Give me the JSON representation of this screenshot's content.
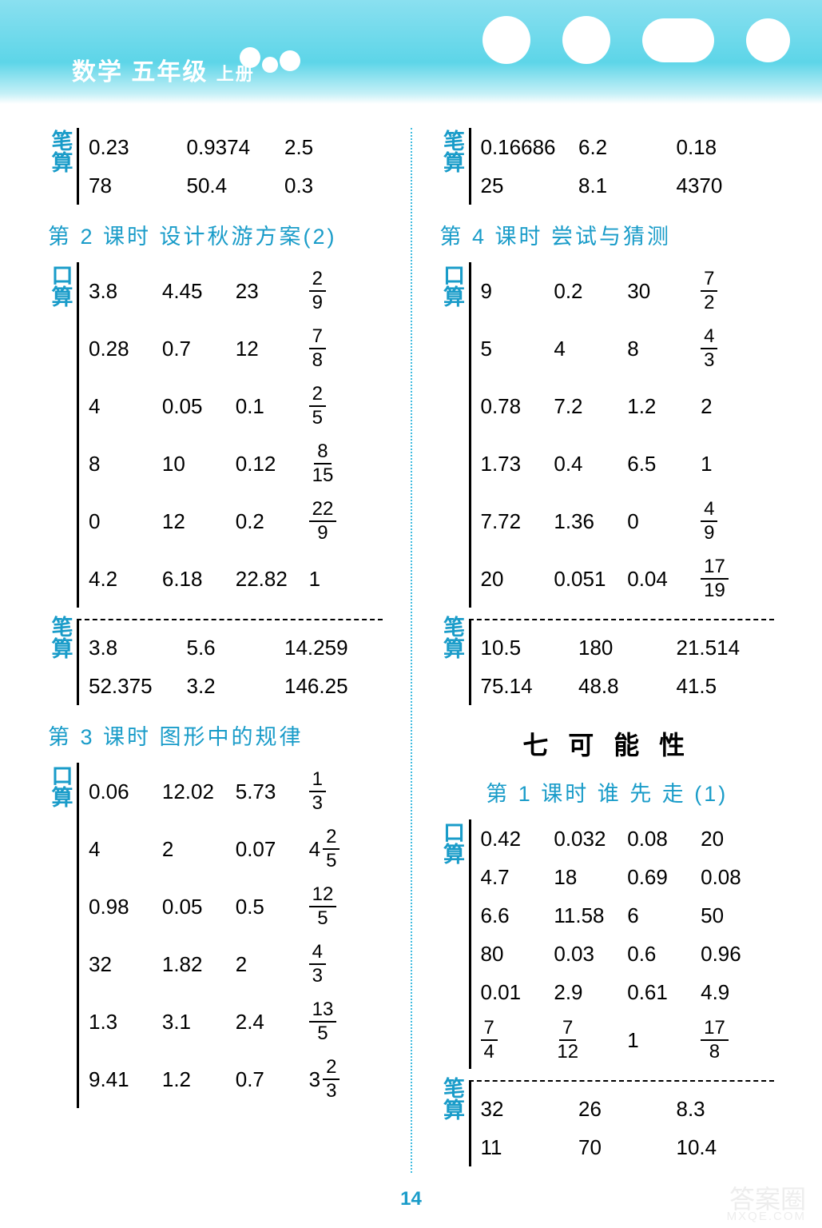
{
  "header": {
    "subject": "数学",
    "grade": "五年级",
    "volume": "上册"
  },
  "colors": {
    "accent": "#1a9cc9",
    "header_bg_top": "#8ae0f0",
    "header_bg_bottom": "#c5f0f7",
    "text": "#000000",
    "divider": "#3fbce0"
  },
  "page_number": "14",
  "watermark": "答案圈",
  "watermark_url": "MXQE.COM",
  "left": {
    "bisuan_top": {
      "rows": [
        [
          "0.23",
          "0.9374",
          "2.5"
        ],
        [
          "78",
          "50.4",
          "0.3"
        ]
      ]
    },
    "section2": {
      "title": "第 2 课时  设计秋游方案(2)",
      "kousuan": {
        "rows": [
          [
            "3.8",
            "4.45",
            "23",
            {
              "n": "2",
              "d": "9"
            }
          ],
          [
            "0.28",
            "0.7",
            "12",
            {
              "n": "7",
              "d": "8"
            }
          ],
          [
            "4",
            "0.05",
            "0.1",
            {
              "n": "2",
              "d": "5"
            }
          ],
          [
            "8",
            "10",
            "0.12",
            {
              "n": "8",
              "d": "15"
            }
          ],
          [
            "0",
            "12",
            "0.2",
            {
              "n": "22",
              "d": "9"
            }
          ],
          [
            "4.2",
            "6.18",
            "22.82",
            "1"
          ]
        ]
      },
      "bisuan": {
        "rows": [
          [
            "3.8",
            "5.6",
            "14.259"
          ],
          [
            "52.375",
            "3.2",
            "146.25"
          ]
        ]
      }
    },
    "section3": {
      "title": "第 3 课时  图形中的规律",
      "kousuan": {
        "rows": [
          [
            "0.06",
            "12.02",
            "5.73",
            {
              "n": "1",
              "d": "3"
            }
          ],
          [
            "4",
            "2",
            "0.07",
            {
              "w": "4",
              "n": "2",
              "d": "5"
            }
          ],
          [
            "0.98",
            "0.05",
            "0.5",
            {
              "n": "12",
              "d": "5"
            }
          ],
          [
            "32",
            "1.82",
            "2",
            {
              "n": "4",
              "d": "3"
            }
          ],
          [
            "1.3",
            "3.1",
            "2.4",
            {
              "n": "13",
              "d": "5"
            }
          ],
          [
            "9.41",
            "1.2",
            "0.7",
            {
              "w": "3",
              "n": "2",
              "d": "3"
            }
          ]
        ]
      }
    }
  },
  "right": {
    "bisuan_top": {
      "rows": [
        [
          "0.16686",
          "6.2",
          "0.18"
        ],
        [
          "25",
          "8.1",
          "4370"
        ]
      ]
    },
    "section4": {
      "title": "第 4 课时  尝试与猜测",
      "kousuan": {
        "rows": [
          [
            "9",
            "0.2",
            "30",
            {
              "n": "7",
              "d": "2"
            }
          ],
          [
            "5",
            "4",
            "8",
            {
              "n": "4",
              "d": "3"
            }
          ],
          [
            "0.78",
            "7.2",
            "1.2",
            "2"
          ],
          [
            "1.73",
            "0.4",
            "6.5",
            "1"
          ],
          [
            "7.72",
            "1.36",
            "0",
            {
              "n": "4",
              "d": "9"
            }
          ],
          [
            "20",
            "0.051",
            "0.04",
            {
              "n": "17",
              "d": "19"
            }
          ]
        ]
      },
      "bisuan": {
        "rows": [
          [
            "10.5",
            "180",
            "21.514"
          ],
          [
            "75.14",
            "48.8",
            "41.5"
          ]
        ]
      }
    },
    "chapter7": {
      "title": "七  可 能 性"
    },
    "section7_1": {
      "title": "第 1 课时  谁 先 走 (1)",
      "kousuan": {
        "rows": [
          [
            "0.42",
            "0.032",
            "0.08",
            "20"
          ],
          [
            "4.7",
            "18",
            "0.69",
            "0.08"
          ],
          [
            "6.6",
            "11.58",
            "6",
            "50"
          ],
          [
            "80",
            "0.03",
            "0.6",
            "0.96"
          ],
          [
            "0.01",
            "2.9",
            "0.61",
            "4.9"
          ],
          [
            {
              "n": "7",
              "d": "4"
            },
            {
              "n": "7",
              "d": "12"
            },
            "1",
            {
              "n": "17",
              "d": "8"
            }
          ]
        ]
      },
      "bisuan": {
        "rows": [
          [
            "32",
            "26",
            "8.3"
          ],
          [
            "11",
            "70",
            "10.4"
          ]
        ]
      }
    }
  },
  "labels": {
    "kousuan": "口算",
    "bisuan": "笔算"
  }
}
